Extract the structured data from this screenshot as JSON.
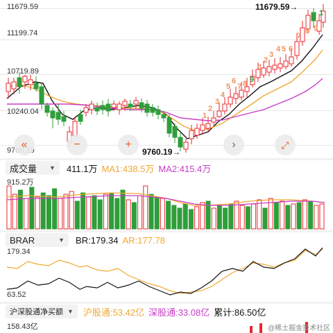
{
  "price_axis": {
    "max": "11679.59",
    "l2": "11199.74",
    "l3": "10719.89",
    "l4": "10240.04",
    "min": "9760.19"
  },
  "price_annotations": {
    "high_label": "11679.59→",
    "low_label": "9760.19→"
  },
  "volume_panel": {
    "selector": "成交量",
    "current": "411.1万",
    "ma1": "MA1:438.5万",
    "ma2": "MA2:415.4万",
    "axis_max": "915.2万"
  },
  "brar_panel": {
    "selector": "BRAR",
    "br": "BR:179.34",
    "ar": "AR:177.78",
    "axis_max": "179.34",
    "axis_min": "63.52"
  },
  "flow_panel": {
    "selector": "沪深股通净买额",
    "hgt": "沪股通:53.42亿",
    "sgt": "深股通:33.08亿",
    "total": "累计:86.50亿",
    "axis_max": "158.43亿"
  },
  "watermark": "@稀土掘金技术社区",
  "colors": {
    "up": "#e8262d",
    "down": "#2f9e3a",
    "ma1": "#f0a830",
    "ma2": "#c83cc8",
    "ma_black": "#111111"
  },
  "icons": [
    "double-left-icon",
    "minus-icon",
    "plus-icon",
    "chevron-right-icon",
    "expand-icon"
  ],
  "td_sequence_up": [
    "1",
    "2",
    "3",
    "4",
    "5",
    "6",
    "7",
    "8",
    "9",
    "1",
    "2",
    "3",
    "4",
    "5",
    "6",
    "7",
    "8",
    "9"
  ]
}
